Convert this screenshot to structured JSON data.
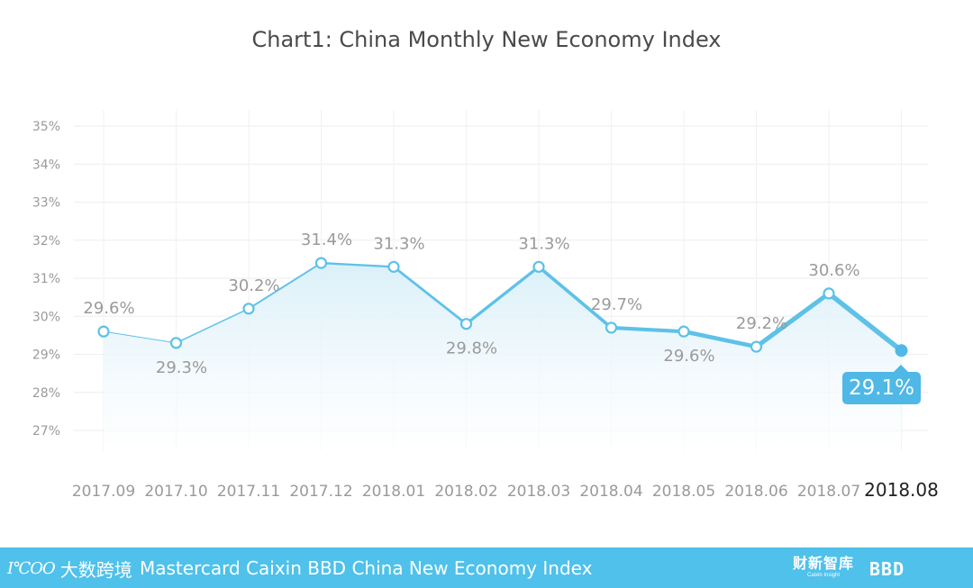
{
  "title": "Chart1: China Monthly New Economy Index",
  "chart_data": {
    "type": "line",
    "title": "Chart1: China Monthly New Economy Index",
    "categories": [
      "2017.09",
      "2017.10",
      "2017.11",
      "2017.12",
      "2018.01",
      "2018.02",
      "2018.03",
      "2018.04",
      "2018.05",
      "2018.06",
      "2018.07",
      "2018.08"
    ],
    "values": [
      29.6,
      29.3,
      30.2,
      31.4,
      31.3,
      29.8,
      31.3,
      29.7,
      29.6,
      29.2,
      30.6,
      29.1
    ],
    "value_labels": [
      "29.6%",
      "29.3%",
      "30.2%",
      "31.4%",
      "31.3%",
      "29.8%",
      "31.3%",
      "29.7%",
      "29.6%",
      "29.2%",
      "30.6%",
      "29.1%"
    ],
    "yticks": [
      "27%",
      "28%",
      "29%",
      "30%",
      "31%",
      "32%",
      "33%",
      "34%",
      "35%"
    ],
    "ylim": [
      27,
      35
    ],
    "xlabel": "",
    "ylabel": "",
    "grid": true,
    "highlight_last": true,
    "line_color": "#5ec1e8",
    "area_color": "#e3f3fb"
  },
  "footer": {
    "left_logo_text": "大数跨境",
    "left_logo_mark": "Ⅰ℃OO",
    "brand_text": "Mastercard Caixin BBD China New Economy Index",
    "caixin_cn": "财新智库",
    "caixin_en": "Caixin Insight",
    "bbd": "BBD",
    "background": "#4fc1eb"
  }
}
